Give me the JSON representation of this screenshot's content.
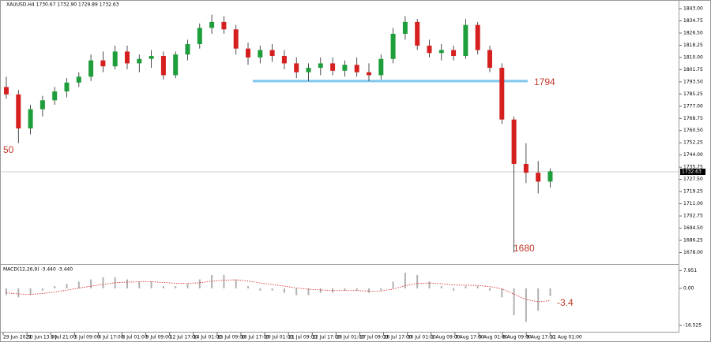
{
  "chart_data": [
    {
      "type": "candlestick",
      "title": "XAUUSD,H4  1730.67 1732.90 1729.89 1732.63",
      "open": [
        1790,
        1785,
        1762,
        1775,
        1781,
        1787,
        1793,
        1797,
        1808,
        1804,
        1814,
        1806,
        1809,
        1811,
        1798,
        1812,
        1819,
        1830,
        1834,
        1829,
        1816,
        1810,
        1815,
        1811,
        1806,
        1800,
        1803,
        1806,
        1801,
        1805,
        1800,
        1798,
        1809,
        1826,
        1834,
        1818,
        1813,
        1815,
        1811,
        1832,
        1815,
        1803,
        1768,
        1738,
        1732,
        1726
      ],
      "high": [
        1797,
        1788,
        1778,
        1784,
        1790,
        1796,
        1800,
        1812,
        1814,
        1818,
        1818,
        1812,
        1815,
        1814,
        1814,
        1822,
        1833,
        1839,
        1838,
        1832,
        1820,
        1818,
        1819,
        1815,
        1810,
        1806,
        1810,
        1810,
        1808,
        1810,
        1806,
        1812,
        1830,
        1838,
        1836,
        1822,
        1819,
        1818,
        1836,
        1834,
        1818,
        1806,
        1770,
        1752,
        1740,
        1735
      ],
      "low": [
        1782,
        1752,
        1758,
        1770,
        1778,
        1783,
        1790,
        1794,
        1800,
        1802,
        1802,
        1800,
        1803,
        1795,
        1796,
        1808,
        1816,
        1826,
        1826,
        1812,
        1805,
        1806,
        1807,
        1802,
        1796,
        1794,
        1798,
        1798,
        1797,
        1797,
        1794,
        1795,
        1806,
        1822,
        1815,
        1810,
        1808,
        1808,
        1809,
        1812,
        1800,
        1765,
        1678,
        1725,
        1718,
        1722
      ],
      "close": [
        1785,
        1762,
        1775,
        1781,
        1787,
        1793,
        1797,
        1808,
        1804,
        1814,
        1806,
        1809,
        1811,
        1798,
        1812,
        1819,
        1830,
        1834,
        1829,
        1816,
        1810,
        1815,
        1811,
        1806,
        1800,
        1803,
        1806,
        1801,
        1805,
        1800,
        1798,
        1809,
        1826,
        1834,
        1818,
        1813,
        1815,
        1811,
        1832,
        1815,
        1803,
        1768,
        1738,
        1732,
        1726,
        1733
      ],
      "up_color": "#1e9e3a",
      "down_color": "#d62020",
      "ylim": [
        1670.8,
        1847.8
      ],
      "yticks": [
        {
          "value": 1843.0,
          "label": "1843.00"
        },
        {
          "value": 1834.75,
          "label": "1834.75"
        },
        {
          "value": 1826.5,
          "label": "1826.50"
        },
        {
          "value": 1818.25,
          "label": "1818.25"
        },
        {
          "value": 1810.0,
          "label": "1810.00"
        },
        {
          "value": 1801.75,
          "label": "1801.75"
        },
        {
          "value": 1793.5,
          "label": "1793.50"
        },
        {
          "value": 1785.25,
          "label": "1785.25"
        },
        {
          "value": 1777.0,
          "label": "1777.00"
        },
        {
          "value": 1768.75,
          "label": "1768.75"
        },
        {
          "value": 1760.5,
          "label": "1760.50"
        },
        {
          "value": 1752.25,
          "label": "1752.25"
        },
        {
          "value": 1744.0,
          "label": "1744.00"
        },
        {
          "value": 1735.75,
          "label": "1735.75"
        },
        {
          "value": 1727.5,
          "label": "1727.50"
        },
        {
          "value": 1719.25,
          "label": "1719.25"
        },
        {
          "value": 1711.0,
          "label": "1711.00"
        },
        {
          "value": 1702.75,
          "label": "1702.75"
        },
        {
          "value": 1694.5,
          "label": "1694.50"
        },
        {
          "value": 1686.25,
          "label": "1686.25"
        },
        {
          "value": 1678.0,
          "label": "1678.00"
        }
      ],
      "current_price": {
        "value": 1732.63,
        "label": "1732.63"
      },
      "level": 1794,
      "level_color": "#7ec8ef",
      "annotations": [
        "1794",
        "50",
        "1680"
      ],
      "x_labels": [
        "29 Jun 2021",
        "30 Jun 13:00",
        "1 Jul 21:00",
        "5 Jul 09:00",
        "6 Jul 17:00",
        "8 Jul 01:00",
        "9 Jul 09:00",
        "12 Jul 17:00",
        "14 Jul 01:00",
        "15 Jul 09:00",
        "16 Jul 17:00",
        "20 Jul 01:00",
        "21 Jul 09:00",
        "22 Jul 17:00",
        "26 Jul 01:00",
        "27 Jul 09:00",
        "28 Jul 17:00",
        "30 Jul 01:00",
        "2 Aug 09:00",
        "3 Aug 17:00",
        "5 Aug 01:00",
        "6 Aug 09:00",
        "9 Aug 17:00",
        "11 Aug 01:00"
      ]
    },
    {
      "type": "macd",
      "title": "MACD(12,26,9) -3.440 -3.440",
      "histogram": [
        -3,
        -4,
        -3,
        -1,
        1,
        2,
        3,
        4,
        5,
        5,
        4,
        3,
        3,
        1,
        1,
        2,
        4,
        6,
        6,
        4,
        1,
        -1,
        -1,
        -2,
        -3,
        -3,
        -2,
        -2,
        -1,
        -1,
        -2,
        -1,
        3,
        7,
        6,
        3,
        1,
        -1,
        1,
        1,
        -1,
        -4,
        -12,
        -15,
        -10,
        -3.44
      ],
      "signal": [
        -2,
        -2.5,
        -2.7,
        -2.3,
        -1.6,
        -0.8,
        0.1,
        1,
        1.8,
        2.5,
        2.8,
        2.9,
        3,
        2.6,
        2.3,
        2.2,
        2.5,
        3.2,
        3.7,
        3.8,
        3.3,
        2.4,
        1.7,
        1,
        0.2,
        -0.4,
        -0.7,
        -1,
        -1,
        -1,
        -1.2,
        -1.2,
        -0.3,
        1.2,
        2.2,
        2.4,
        2.1,
        1.5,
        1.4,
        1.3,
        0.8,
        -0.2,
        -2.6,
        -5,
        -6,
        -5.5
      ],
      "histogram_color": "#b0b0b0",
      "signal_color": "#d62020",
      "ylim": [
        -19.03,
        9.83
      ],
      "yticks": [
        7.951,
        {
          "value": 0,
          "label": "0.00"
        },
        -16.525
      ],
      "annotations": [
        "-3.4"
      ]
    }
  ]
}
